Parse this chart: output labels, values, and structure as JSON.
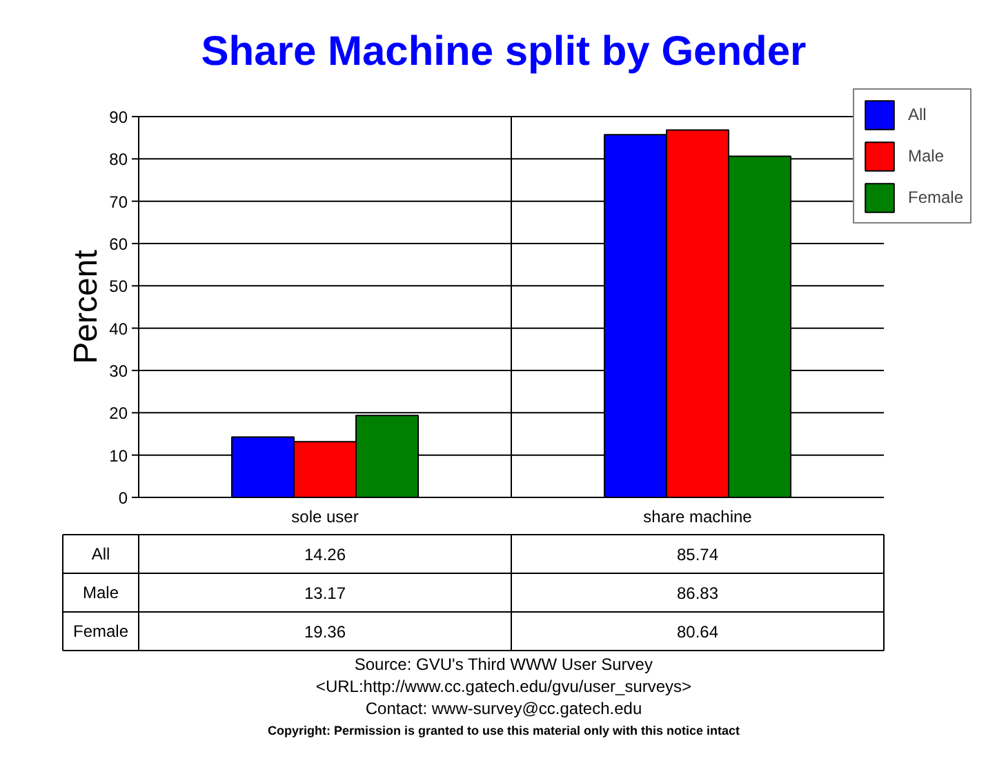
{
  "chart_data": {
    "type": "bar",
    "title": "Share Machine split by Gender",
    "ylabel": "Percent",
    "categories": [
      "sole user",
      "share machine"
    ],
    "series": [
      {
        "name": "All",
        "color": "#0000ff",
        "values": [
          14.26,
          85.74
        ]
      },
      {
        "name": "Male",
        "color": "#ff0000",
        "values": [
          13.17,
          86.83
        ]
      },
      {
        "name": "Female",
        "color": "#008000",
        "values": [
          19.36,
          80.64
        ]
      }
    ],
    "ylim": [
      0,
      90
    ],
    "yticks": [
      0,
      10,
      20,
      30,
      40,
      50,
      60,
      70,
      80,
      90
    ],
    "grid": true,
    "legend": "top right",
    "data_labels": true,
    "annotations": [
      "Source: GVU's Third WWW User Survey",
      "<URL:http://www.cc.gatech.edu/gvu/user_surveys>",
      "Contact: www-survey@cc.gatech.edu",
      "Copyright: Permission is granted to use this material only with this notice intact"
    ]
  }
}
